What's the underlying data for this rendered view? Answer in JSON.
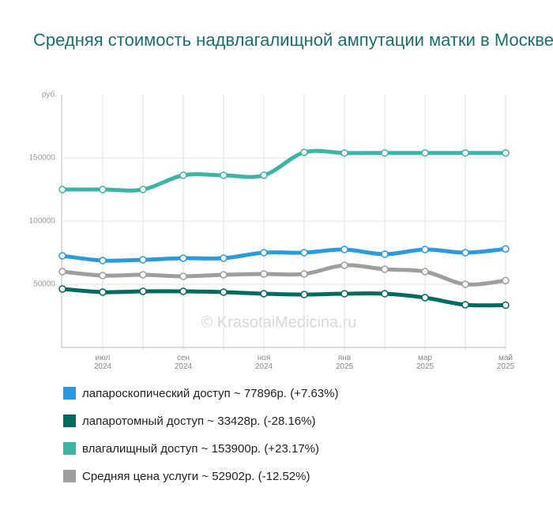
{
  "chart_data": {
    "type": "line",
    "title": "Средняя стоимость надвлагалищной ампутации матки в Москве",
    "y_unit": "руб.",
    "watermark": "© KrasotaiMedicina.ru",
    "categories": [
      null,
      "июл 2024",
      null,
      "сен 2024",
      null,
      "ноя 2024",
      null,
      "янв 2025",
      null,
      "мар 2025",
      null,
      "май 2025"
    ],
    "ylim": [
      0,
      200000
    ],
    "yticks": [
      50000,
      100000,
      150000
    ],
    "grid": true,
    "series": [
      {
        "name": "лапароскопический доступ ~ 77896р. (+7.63%)",
        "color": "#2b9be0",
        "values": [
          72500,
          68750,
          69375,
          70625,
          70625,
          75000,
          75000,
          77500,
          73750,
          77500,
          75000,
          77896
        ]
      },
      {
        "name": "лапаротомный доступ ~ 33428р. (-28.16%)",
        "color": "#006b5e",
        "values": [
          46250,
          43750,
          44375,
          44375,
          43750,
          42500,
          41875,
          42500,
          42500,
          39375,
          33750,
          33428
        ]
      },
      {
        "name": "влагалищный доступ ~ 153900р. (+23.17%)",
        "color": "#3cb5a5",
        "values": [
          125000,
          125000,
          125000,
          136250,
          136250,
          136250,
          154375,
          153900,
          153900,
          153900,
          153900,
          153900
        ]
      },
      {
        "name": "Средняя цена услуги ~ 52902р. (-12.52%)",
        "color": "#9e9e9e",
        "values": [
          60000,
          56875,
          57500,
          56250,
          57500,
          58125,
          58125,
          65000,
          61875,
          60000,
          50000,
          52902
        ]
      }
    ]
  }
}
